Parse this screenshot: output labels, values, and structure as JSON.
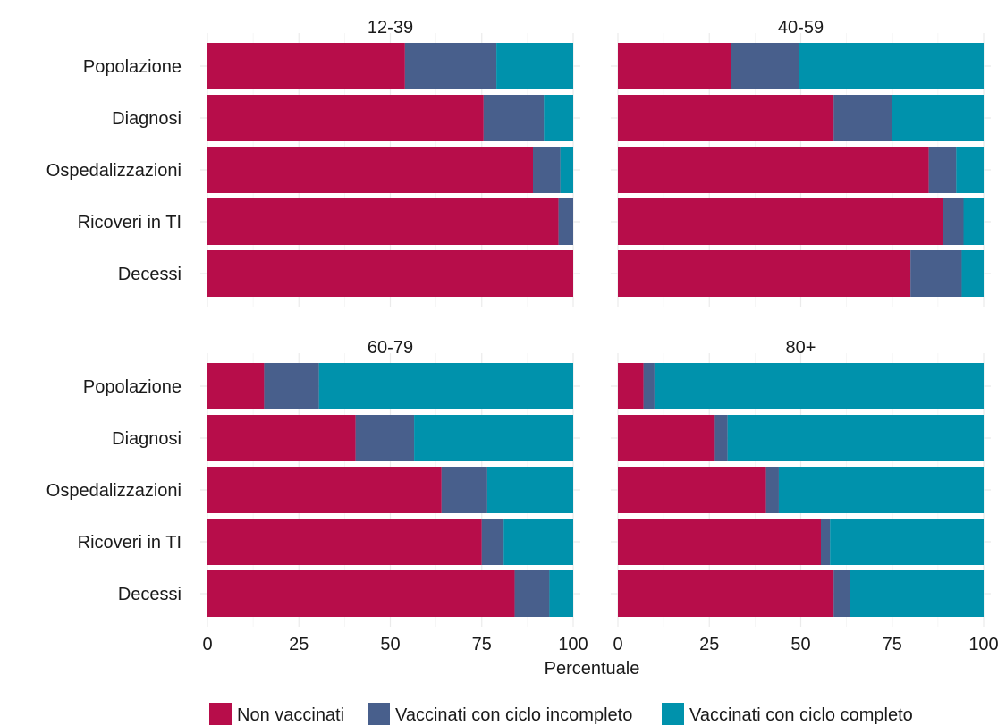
{
  "chart_data": {
    "type": "bar",
    "orientation": "horizontal",
    "stacked": true,
    "facet_layout": "2x2",
    "xlabel": "Percentuale",
    "xlim": [
      0,
      100
    ],
    "xticks": [
      0,
      25,
      50,
      75,
      100
    ],
    "grid": true,
    "legend_position": "bottom",
    "categories": [
      "Popolazione",
      "Diagnosi",
      "Ospedalizzazioni",
      "Ricoveri in TI",
      "Decessi"
    ],
    "series_names": [
      "Non vaccinati",
      "Vaccinati con ciclo incompleto",
      "Vaccinati con ciclo completo"
    ],
    "colors": [
      "#B70D4A",
      "#485F8C",
      "#0092AC"
    ],
    "panels": [
      {
        "title": "12-39",
        "values": [
          [
            54,
            25,
            21
          ],
          [
            75.5,
            16.5,
            8
          ],
          [
            89,
            7.5,
            3.5
          ],
          [
            96,
            4,
            0
          ],
          [
            100,
            0,
            0
          ]
        ]
      },
      {
        "title": "40-59",
        "values": [
          [
            31,
            18.5,
            50.5
          ],
          [
            59,
            16,
            25
          ],
          [
            85,
            7.5,
            7.5
          ],
          [
            89,
            5.5,
            5.5
          ],
          [
            80,
            14,
            6
          ]
        ]
      },
      {
        "title": "60-79",
        "values": [
          [
            15.5,
            15,
            69.5
          ],
          [
            40.5,
            16,
            43.5
          ],
          [
            64,
            12.5,
            23.5
          ],
          [
            75,
            6,
            19
          ],
          [
            84,
            9.5,
            6.5
          ]
        ]
      },
      {
        "title": "80+",
        "values": [
          [
            7,
            3,
            90
          ],
          [
            26.5,
            3.5,
            70
          ],
          [
            40.5,
            3.5,
            56
          ],
          [
            55.5,
            2.5,
            42
          ],
          [
            59,
            4.5,
            36.5
          ]
        ]
      }
    ]
  }
}
